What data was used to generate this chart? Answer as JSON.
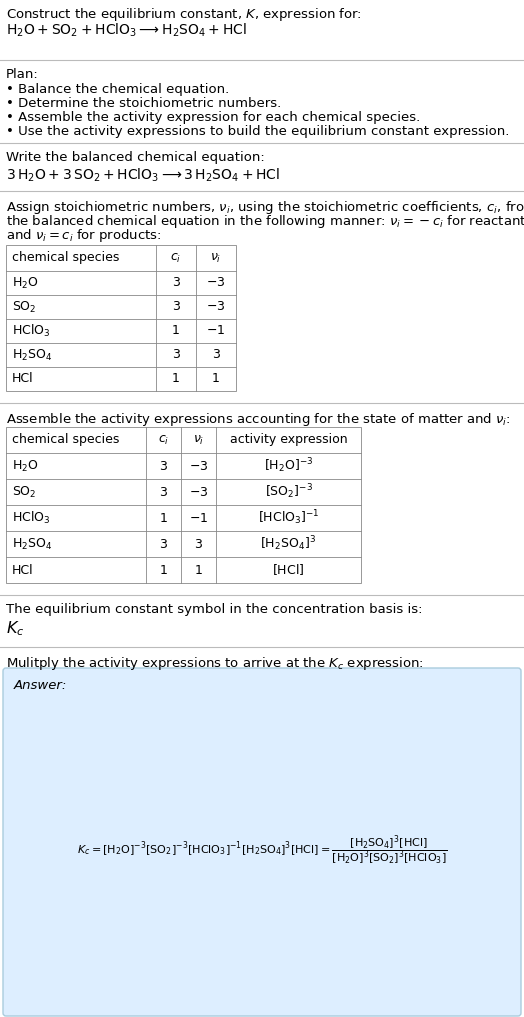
{
  "bg_color": "#ffffff",
  "title_line1": "Construct the equilibrium constant, $K$, expression for:",
  "title_line2": "$\\mathrm{H_2O + SO_2 + HClO_3 \\longrightarrow H_2SO_4 + HCl}$",
  "plan_header": "Plan:",
  "plan_bullets": [
    "• Balance the chemical equation.",
    "• Determine the stoichiometric numbers.",
    "• Assemble the activity expression for each chemical species.",
    "• Use the activity expressions to build the equilibrium constant expression."
  ],
  "balanced_header": "Write the balanced chemical equation:",
  "balanced_eq": "$3\\,\\mathrm{H_2O} + 3\\,\\mathrm{SO_2} + \\mathrm{HClO_3} \\longrightarrow 3\\,\\mathrm{H_2SO_4} + \\mathrm{HCl}$",
  "stoich_header_lines": [
    "Assign stoichiometric numbers, $\\nu_i$, using the stoichiometric coefficients, $c_i$, from",
    "the balanced chemical equation in the following manner: $\\nu_i = -c_i$ for reactants",
    "and $\\nu_i = c_i$ for products:"
  ],
  "table1_cols": [
    "chemical species",
    "$c_i$",
    "$\\nu_i$"
  ],
  "table1_rows": [
    [
      "$\\mathrm{H_2O}$",
      "3",
      "$-3$"
    ],
    [
      "$\\mathrm{SO_2}$",
      "3",
      "$-3$"
    ],
    [
      "$\\mathrm{HClO_3}$",
      "1",
      "$-1$"
    ],
    [
      "$\\mathrm{H_2SO_4}$",
      "3",
      "3"
    ],
    [
      "HCl",
      "1",
      "1"
    ]
  ],
  "activity_header": "Assemble the activity expressions accounting for the state of matter and $\\nu_i$:",
  "table2_cols": [
    "chemical species",
    "$c_i$",
    "$\\nu_i$",
    "activity expression"
  ],
  "table2_rows": [
    [
      "$\\mathrm{H_2O}$",
      "3",
      "$-3$",
      "$[\\mathrm{H_2O}]^{-3}$"
    ],
    [
      "$\\mathrm{SO_2}$",
      "3",
      "$-3$",
      "$[\\mathrm{SO_2}]^{-3}$"
    ],
    [
      "$\\mathrm{HClO_3}$",
      "1",
      "$-1$",
      "$[\\mathrm{HClO_3}]^{-1}$"
    ],
    [
      "$\\mathrm{H_2SO_4}$",
      "3",
      "3",
      "$[\\mathrm{H_2SO_4}]^{3}$"
    ],
    [
      "HCl",
      "1",
      "1",
      "$[\\mathrm{HCl}]$"
    ]
  ],
  "kc_header": "The equilibrium constant symbol in the concentration basis is:",
  "kc_symbol": "$K_c$",
  "multiply_header": "Mulitply the activity expressions to arrive at the $K_c$ expression:",
  "answer_box_color": "#ddeeff",
  "answer_box_border": "#aaccdd",
  "answer_label": "Answer:"
}
